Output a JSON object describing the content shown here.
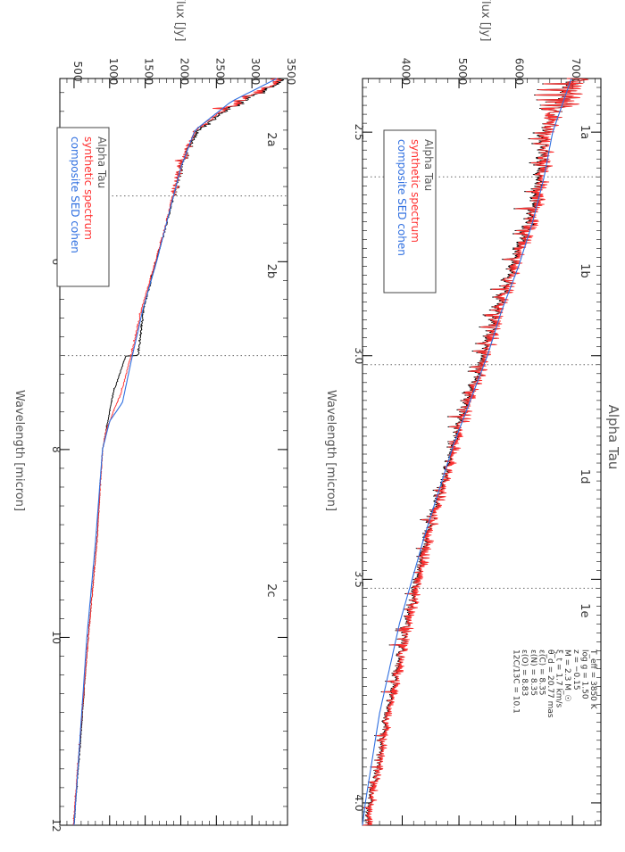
{
  "page_title": "Alpha Tau",
  "colors": {
    "observed": "#000000",
    "synthetic": "#ff3030",
    "cohen": "#2f6fe0",
    "axis": "#000000",
    "text_grey": "#555555",
    "dotted": "#666666"
  },
  "chart_data": [
    {
      "type": "line",
      "title": "Alpha Tau",
      "xlabel": "Wavelength [micron]",
      "ylabel": "Flux [Jy]",
      "xlim": [
        2.38,
        4.05
      ],
      "ylim": [
        3300,
        7500
      ],
      "x_ticks": [
        {
          "v": 2.5,
          "label": "2.5"
        },
        {
          "v": 3.0,
          "label": "3.0"
        },
        {
          "v": 3.5,
          "label": "3.5"
        },
        {
          "v": 4.0,
          "label": "4.0"
        }
      ],
      "y_ticks": [
        {
          "v": 4000,
          "label": "4000"
        },
        {
          "v": 5000,
          "label": "5000"
        },
        {
          "v": 6000,
          "label": "6000"
        },
        {
          "v": 7000,
          "label": "7000"
        }
      ],
      "band_boundaries": [
        2.6,
        3.02,
        3.52
      ],
      "band_labels": [
        {
          "x": 2.5,
          "label": "1a"
        },
        {
          "x": 2.81,
          "label": "1b"
        },
        {
          "x": 3.27,
          "label": "1d"
        },
        {
          "x": 3.57,
          "label": "1e"
        }
      ],
      "legend": [
        "Alpha Tau",
        "synthetic spectrum",
        "composite SED cohen"
      ],
      "params": [
        "T_eff = 3850 K",
        "log g = 1.50",
        "z = −0.15",
        "M = 2.3 M_☉",
        "ξ_t = 1.7 km/s",
        "θ_d = 20.77 mas",
        "ε(C) = 8.35",
        "ε(N) = 8.35",
        "ε(O) = 8.83",
        "12C/13C = 10.1"
      ],
      "series": [
        {
          "name": "Alpha Tau",
          "x": [
            2.38,
            2.45,
            2.5,
            2.6,
            2.7,
            2.8,
            2.9,
            3.0,
            3.2,
            3.4,
            3.6,
            3.8,
            4.0,
            4.05
          ],
          "y": [
            7100,
            6700,
            6550,
            6450,
            6250,
            5950,
            5700,
            5450,
            4900,
            4450,
            4100,
            3750,
            3450,
            3400
          ]
        },
        {
          "name": "synthetic spectrum",
          "x": [
            2.38,
            2.45,
            2.5,
            2.6,
            2.7,
            2.8,
            2.9,
            3.0,
            3.2,
            3.4,
            3.6,
            3.8,
            4.0,
            4.05
          ],
          "y": [
            7050,
            6650,
            6550,
            6450,
            6250,
            5950,
            5700,
            5450,
            4900,
            4450,
            4100,
            3750,
            3450,
            3400
          ]
        },
        {
          "name": "composite SED cohen",
          "x": [
            2.38,
            2.5,
            2.6,
            2.7,
            2.8,
            2.9,
            3.0,
            3.2,
            3.4,
            3.6,
            3.8,
            4.0,
            4.05
          ],
          "y": [
            6980,
            6650,
            6500,
            6300,
            6050,
            5750,
            5500,
            4900,
            4400,
            3950,
            3600,
            3350,
            3300
          ]
        }
      ]
    },
    {
      "type": "line",
      "title": "",
      "xlabel": "Wavelength [micron]",
      "ylabel": "Flux [Jy]",
      "xlim": [
        4.05,
        12.0
      ],
      "ylim": [
        300,
        3500
      ],
      "x_ticks": [
        {
          "v": 6,
          "label": "6"
        },
        {
          "v": 8,
          "label": "8"
        },
        {
          "v": 10,
          "label": "10"
        },
        {
          "v": 12,
          "label": "12"
        }
      ],
      "y_ticks": [
        {
          "v": 500,
          "label": "500"
        },
        {
          "v": 1000,
          "label": "1000"
        },
        {
          "v": 1500,
          "label": "1500"
        },
        {
          "v": 2000,
          "label": "2000"
        },
        {
          "v": 2500,
          "label": "2500"
        },
        {
          "v": 3000,
          "label": "3000"
        },
        {
          "v": 3500,
          "label": "3500"
        }
      ],
      "band_boundaries": [
        5.3,
        7.0
      ],
      "band_labels": [
        {
          "x": 4.7,
          "label": "2a"
        },
        {
          "x": 6.1,
          "label": "2b"
        },
        {
          "x": 9.5,
          "label": "2c"
        }
      ],
      "legend": [
        "Alpha Tau",
        "synthetic spectrum",
        "composite SED cohen"
      ],
      "series": [
        {
          "name": "Alpha Tau",
          "x": [
            4.05,
            4.2,
            4.4,
            4.6,
            4.8,
            5.0,
            5.3,
            5.6,
            6.0,
            6.5,
            7.0,
            7.0,
            7.4,
            7.8,
            8.0,
            9.0,
            10.0,
            11.0,
            12.0
          ],
          "y": [
            3450,
            3100,
            2600,
            2250,
            2100,
            2000,
            1900,
            1800,
            1650,
            1480,
            1400,
            1230,
            1050,
            950,
            900,
            820,
            700,
            600,
            500
          ]
        },
        {
          "name": "synthetic spectrum",
          "x": [
            4.05,
            4.2,
            4.4,
            4.6,
            4.8,
            5.0,
            5.3,
            5.6,
            6.0,
            6.5,
            7.0,
            7.4,
            7.6,
            7.8,
            8.0,
            9.0,
            10.0,
            11.0,
            12.0
          ],
          "y": [
            3400,
            3050,
            2550,
            2200,
            2080,
            1980,
            1880,
            1790,
            1640,
            1450,
            1300,
            1160,
            1050,
            950,
            900,
            820,
            700,
            590,
            490
          ]
        },
        {
          "name": "composite SED cohen",
          "x": [
            4.05,
            4.3,
            4.6,
            5.0,
            5.5,
            6.0,
            6.5,
            7.0,
            7.5,
            7.7,
            8.0,
            9.0,
            10.0,
            11.0,
            12.0
          ],
          "y": [
            3350,
            2700,
            2200,
            2000,
            1830,
            1660,
            1470,
            1320,
            1180,
            1000,
            900,
            800,
            680,
            590,
            500
          ]
        }
      ]
    }
  ]
}
